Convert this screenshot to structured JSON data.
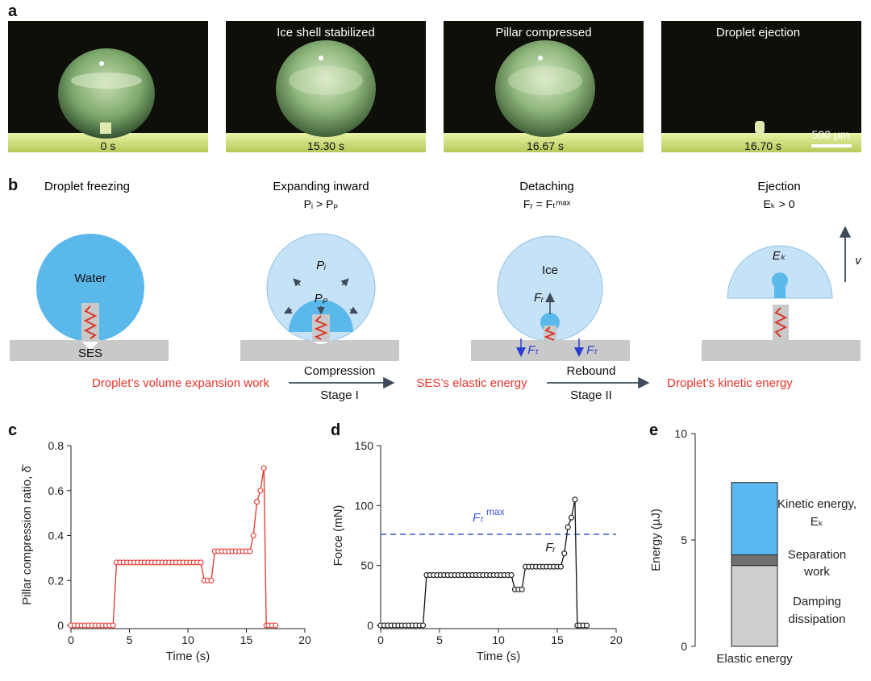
{
  "panel_letters": {
    "a": "a",
    "b": "b",
    "c": "c",
    "d": "d",
    "e": "e"
  },
  "panel_a": {
    "frames": [
      {
        "title": "",
        "time": "0 s"
      },
      {
        "title": "Ice shell stabilized",
        "time": "15.30 s"
      },
      {
        "title": "Pillar compressed",
        "time": "16.67 s"
      },
      {
        "title": "Droplet ejection",
        "time": "16.70 s"
      }
    ],
    "scale_bar": "500 µm"
  },
  "panel_b": {
    "stages": [
      {
        "title": "Droplet freezing",
        "sub": ""
      },
      {
        "title": "Expanding inward",
        "sub": "Pᵢ > Pₚ"
      },
      {
        "title": "Detaching",
        "sub": "Fᵣ = Fₜᵐᵃˣ"
      },
      {
        "title": "Ejection",
        "sub": "Eₖ > 0"
      }
    ],
    "labels": {
      "water": "Water",
      "ses": "SES",
      "pi": "Pᵢ",
      "pp": "Pₚ",
      "ice": "Ice",
      "fr": "Fᵣ",
      "ft": "Fₜ",
      "ek": "Eₖ",
      "v": "v"
    },
    "flow": {
      "step1": "Droplet’s volume expansion work",
      "arrow1_top": "Compression",
      "arrow1_bottom": "Stage I",
      "step2": "SES’s elastic energy",
      "arrow2_top": "Rebound",
      "arrow2_bottom": "Stage II",
      "step3": "Droplet’s kinetic energy"
    },
    "colors": {
      "flow_text": "#e8332a",
      "water": "#5bb8ea",
      "ice": "#c6e2f7",
      "substrate": "#c9c9c9",
      "spring": "#d9362b"
    }
  },
  "chart_data": [
    {
      "panel": "c",
      "type": "line",
      "xlabel": "Time (s)",
      "ylabel": "Pillar compression ratio, δ̄",
      "xlim": [
        0,
        20
      ],
      "ylim": [
        0,
        0.8
      ],
      "xticks": [
        0,
        5,
        10,
        15,
        20
      ],
      "yticks": [
        0,
        0.2,
        0.4,
        0.6,
        0.8
      ],
      "ytick_labels": [
        "0",
        "0.2",
        "0.4",
        "0.6",
        "0.8"
      ],
      "color": "#e8332a",
      "x": [
        0,
        0.3,
        0.6,
        0.9,
        1.2,
        1.5,
        1.8,
        2.1,
        2.4,
        2.7,
        3.0,
        3.3,
        3.6,
        3.9,
        4.2,
        4.5,
        4.8,
        5.1,
        5.4,
        5.7,
        6.0,
        6.3,
        6.6,
        6.9,
        7.2,
        7.5,
        7.8,
        8.1,
        8.4,
        8.7,
        9.0,
        9.3,
        9.6,
        9.9,
        10.2,
        10.5,
        10.8,
        11.1,
        11.4,
        11.7,
        12.0,
        12.3,
        12.6,
        12.9,
        13.2,
        13.5,
        13.8,
        14.1,
        14.4,
        14.7,
        15.0,
        15.3,
        15.6,
        15.9,
        16.2,
        16.5,
        16.7,
        16.9,
        17.2,
        17.5
      ],
      "y": [
        0,
        0,
        0,
        0,
        0,
        0,
        0,
        0,
        0,
        0,
        0,
        0,
        0,
        0.28,
        0.28,
        0.28,
        0.28,
        0.28,
        0.28,
        0.28,
        0.28,
        0.28,
        0.28,
        0.28,
        0.28,
        0.28,
        0.28,
        0.28,
        0.28,
        0.28,
        0.28,
        0.28,
        0.28,
        0.28,
        0.28,
        0.28,
        0.28,
        0.28,
        0.2,
        0.2,
        0.2,
        0.33,
        0.33,
        0.33,
        0.33,
        0.33,
        0.33,
        0.33,
        0.33,
        0.33,
        0.33,
        0.33,
        0.4,
        0.55,
        0.6,
        0.7,
        0,
        0,
        0,
        0
      ]
    },
    {
      "panel": "d",
      "type": "line",
      "xlabel": "Time (s)",
      "ylabel": "Force (mN)",
      "xlim": [
        0,
        20
      ],
      "ylim": [
        0,
        150
      ],
      "xticks": [
        0,
        5,
        10,
        15,
        20
      ],
      "yticks": [
        0,
        50,
        100,
        150
      ],
      "color": "#111111",
      "series_label": "Fᵣ",
      "threshold": {
        "label": "Fₜ",
        "label_sup": "max",
        "value": 76,
        "color": "#3a55e0"
      },
      "x": [
        0,
        0.3,
        0.6,
        0.9,
        1.2,
        1.5,
        1.8,
        2.1,
        2.4,
        2.7,
        3.0,
        3.3,
        3.6,
        3.9,
        4.2,
        4.5,
        4.8,
        5.1,
        5.4,
        5.7,
        6.0,
        6.3,
        6.6,
        6.9,
        7.2,
        7.5,
        7.8,
        8.1,
        8.4,
        8.7,
        9.0,
        9.3,
        9.6,
        9.9,
        10.2,
        10.5,
        10.8,
        11.1,
        11.4,
        11.7,
        12.0,
        12.3,
        12.6,
        12.9,
        13.2,
        13.5,
        13.8,
        14.1,
        14.4,
        14.7,
        15.0,
        15.3,
        15.6,
        15.9,
        16.2,
        16.5,
        16.7,
        16.9,
        17.2,
        17.5
      ],
      "y": [
        0,
        0,
        0,
        0,
        0,
        0,
        0,
        0,
        0,
        0,
        0,
        0,
        0,
        42,
        42,
        42,
        42,
        42,
        42,
        42,
        42,
        42,
        42,
        42,
        42,
        42,
        42,
        42,
        42,
        42,
        42,
        42,
        42,
        42,
        42,
        42,
        42,
        42,
        30,
        30,
        30,
        49,
        49,
        49,
        49,
        49,
        49,
        49,
        49,
        49,
        49,
        49,
        60,
        82,
        90,
        105,
        0,
        0,
        0,
        0
      ]
    },
    {
      "panel": "e",
      "type": "bar",
      "categories": [
        "Elastic energy"
      ],
      "ylabel": "Energy (µJ)",
      "ylim": [
        0,
        10
      ],
      "yticks": [
        0,
        5,
        10
      ],
      "stack": [
        {
          "name": "Damping dissipation",
          "value": 3.8,
          "color": "#cfcfcf"
        },
        {
          "name": "Separation work",
          "value": 0.5,
          "color": "#707070"
        },
        {
          "name": "Kinetic energy, Eₖ",
          "value": 3.4,
          "color": "#5bb8f0"
        }
      ]
    }
  ]
}
